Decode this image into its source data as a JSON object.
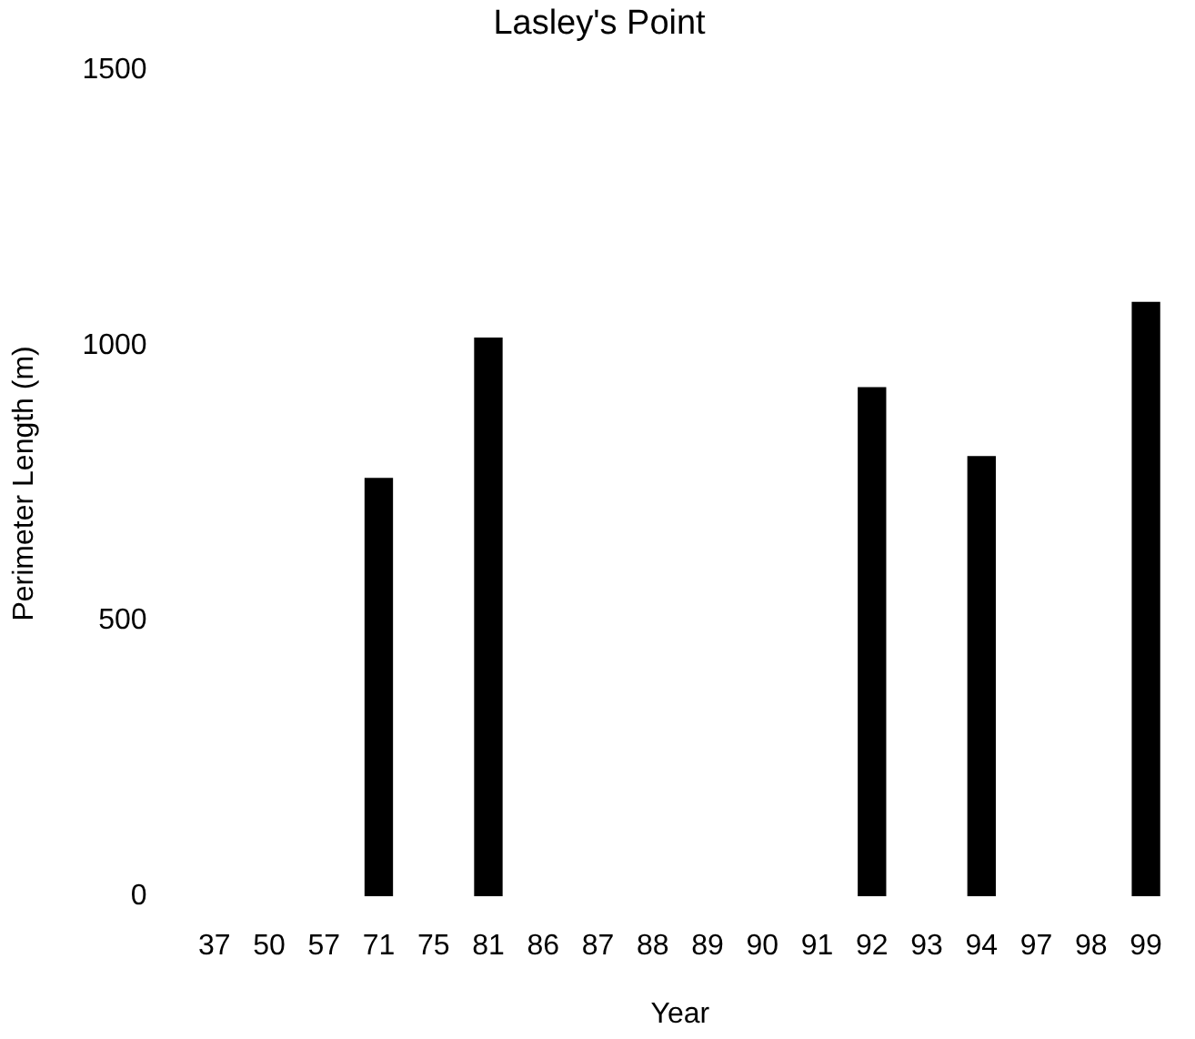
{
  "chart_data": {
    "type": "bar",
    "title": "Lasley's Point",
    "xlabel": "Year",
    "ylabel": "Perimeter Length (m)",
    "categories": [
      "37",
      "50",
      "57",
      "71",
      "75",
      "81",
      "86",
      "87",
      "88",
      "89",
      "90",
      "91",
      "92",
      "93",
      "94",
      "97",
      "98",
      "99"
    ],
    "values": [
      0,
      0,
      0,
      760,
      0,
      1015,
      0,
      0,
      0,
      0,
      0,
      0,
      925,
      0,
      800,
      0,
      0,
      1080
    ],
    "color": "#000000",
    "ylim": [
      0,
      1500
    ],
    "yticks": [
      0,
      500,
      1000,
      1500
    ],
    "grid": false,
    "legend": false
  }
}
